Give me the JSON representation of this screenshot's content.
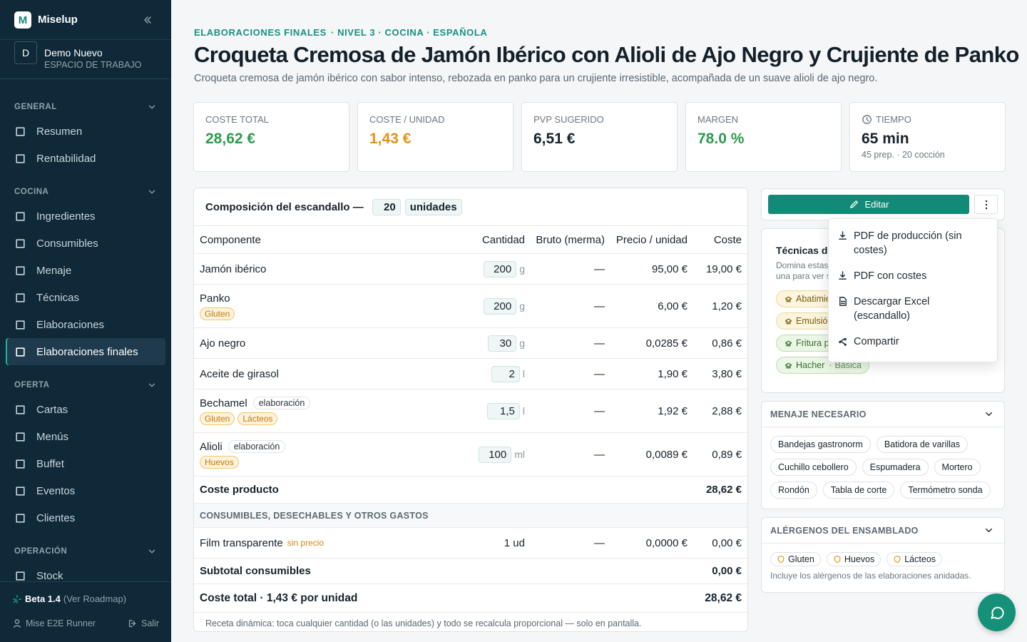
{
  "sidebar": {
    "logo_letter": "M",
    "brand": "Miselup",
    "workspace": {
      "avatar": "D",
      "name": "Demo Nuevo",
      "subtitle": "ESPACIO DE TRABAJO"
    },
    "sections": [
      {
        "title": "GENERAL",
        "items": [
          {
            "label": "Resumen"
          },
          {
            "label": "Rentabilidad"
          }
        ]
      },
      {
        "title": "COCINA",
        "items": [
          {
            "label": "Ingredientes"
          },
          {
            "label": "Consumibles"
          },
          {
            "label": "Menaje"
          },
          {
            "label": "Técnicas"
          },
          {
            "label": "Elaboraciones"
          },
          {
            "label": "Elaboraciones finales",
            "active": true
          }
        ]
      },
      {
        "title": "OFERTA",
        "items": [
          {
            "label": "Cartas"
          },
          {
            "label": "Menús"
          },
          {
            "label": "Buffet"
          },
          {
            "label": "Eventos"
          },
          {
            "label": "Clientes"
          }
        ]
      },
      {
        "title": "OPERACIÓN",
        "items": [
          {
            "label": "Stock"
          }
        ]
      }
    ],
    "footer": {
      "version": "Beta 1.4",
      "roadmap": "(Ver Roadmap)",
      "user": "Mise E2E Runner",
      "logout": "Salir"
    }
  },
  "header": {
    "breadcrumb": "ELABORACIONES FINALES",
    "breadcrumb_meta": "· NIVEL 3 · COCINA · ESPAÑOLA",
    "title": "Croqueta Cremosa de Jamón Ibérico con Alioli de Ajo Negro y Crujiente de Panko",
    "description": "Croqueta cremosa de jamón ibérico con sabor intenso, rebozada en panko para un crujiente irresistible, acompañada de un suave alioli de ajo negro."
  },
  "kpis": [
    {
      "label": "COSTE TOTAL",
      "value": "28,62 €",
      "tone": "green"
    },
    {
      "label": "COSTE / UNIDAD",
      "value": "1,43 €",
      "tone": "orange"
    },
    {
      "label": "PVP SUGERIDO",
      "value": "6,51 €",
      "tone": "dark"
    },
    {
      "label": "MARGEN",
      "value": "78.0 %",
      "tone": "green"
    },
    {
      "label": "TIEMPO",
      "value": "65 min",
      "tone": "dark",
      "sub": "45 prep. · 20 cocción"
    }
  ],
  "table": {
    "title": "Composición del escandallo —",
    "units_value": "20",
    "units_label": "unidades",
    "columns": [
      "Componente",
      "Cantidad",
      "Bruto (merma)",
      "Precio / unidad",
      "Coste"
    ],
    "rows": [
      {
        "name": "Jamón ibérico",
        "qty": "200",
        "unit": "g",
        "gross": "—",
        "price": "95,00 €",
        "cost": "19,00 €"
      },
      {
        "name": "Panko",
        "tags": [
          "Gluten"
        ],
        "qty": "200",
        "unit": "g",
        "gross": "—",
        "price": "6,00 €",
        "cost": "1,20 €"
      },
      {
        "name": "Ajo negro",
        "qty": "30",
        "unit": "g",
        "gross": "—",
        "price": "0,0285 €",
        "cost": "0,86 €"
      },
      {
        "name": "Aceite de girasol",
        "qty": "2",
        "unit": "l",
        "gross": "—",
        "price": "1,90 €",
        "cost": "3,80 €"
      },
      {
        "name": "Bechamel",
        "badge": "elaboración",
        "tags": [
          "Gluten",
          "Lácteos"
        ],
        "qty": "1,5",
        "unit": "l",
        "gross": "—",
        "price": "1,92 €",
        "cost": "2,88 €"
      },
      {
        "name": "Alioli",
        "badge": "elaboración",
        "tags": [
          "Huevos"
        ],
        "qty": "100",
        "unit": "ml",
        "gross": "—",
        "price": "0,0089 €",
        "cost": "0,89 €"
      }
    ],
    "product_total": {
      "label": "Coste producto",
      "value": "28,62 €"
    },
    "consumables_title": "CONSUMIBLES, DESECHABLES Y OTROS GASTOS",
    "consumables": [
      {
        "name": "Film transparente",
        "note": "sin precio",
        "qty": "1 ud",
        "gross": "—",
        "price": "0,0000 €",
        "cost": "0,00 €"
      }
    ],
    "consumables_total": {
      "label": "Subtotal consumibles",
      "value": "0,00 €"
    },
    "grand_total": {
      "label": "Coste total · 1,43 € por unidad",
      "value": "28,62 €"
    },
    "footnote": "Receta dinámica: toca cualquier cantidad (o las unidades) y todo se recalcula proporcional — solo en pantalla."
  },
  "actions": {
    "edit": "Editar",
    "menu": [
      "PDF de producción (sin costes)",
      "PDF con costes",
      "Descargar Excel (escandallo)",
      "Compartir"
    ]
  },
  "techniques": {
    "title": "Técnicas de cocina",
    "description": "Domina estas técnicas antes de producir. Pulsa una para ver su ficha.",
    "items": [
      {
        "name": "Abatimiento",
        "level": "Básica",
        "tone": "amber"
      },
      {
        "name": "Emulsión",
        "level": "Básica",
        "tone": "amber"
      },
      {
        "name": "Fritura profunda",
        "level": "Básica",
        "tone": "green"
      },
      {
        "name": "Hacher",
        "level": "Básica",
        "tone": "green"
      }
    ]
  },
  "equipment": {
    "title": "MENAJE NECESARIO",
    "items": [
      "Bandejas gastronorm",
      "Batidora de varillas",
      "Cuchillo cebollero",
      "Espumadera",
      "Mortero",
      "Rondón",
      "Tabla de corte",
      "Termómetro sonda"
    ]
  },
  "allergens": {
    "title": "ALÉRGENOS DEL ENSAMBLADO",
    "items": [
      "Gluten",
      "Huevos",
      "Lácteos"
    ],
    "note": "Incluye los alérgenos de las elaboraciones anidadas."
  }
}
